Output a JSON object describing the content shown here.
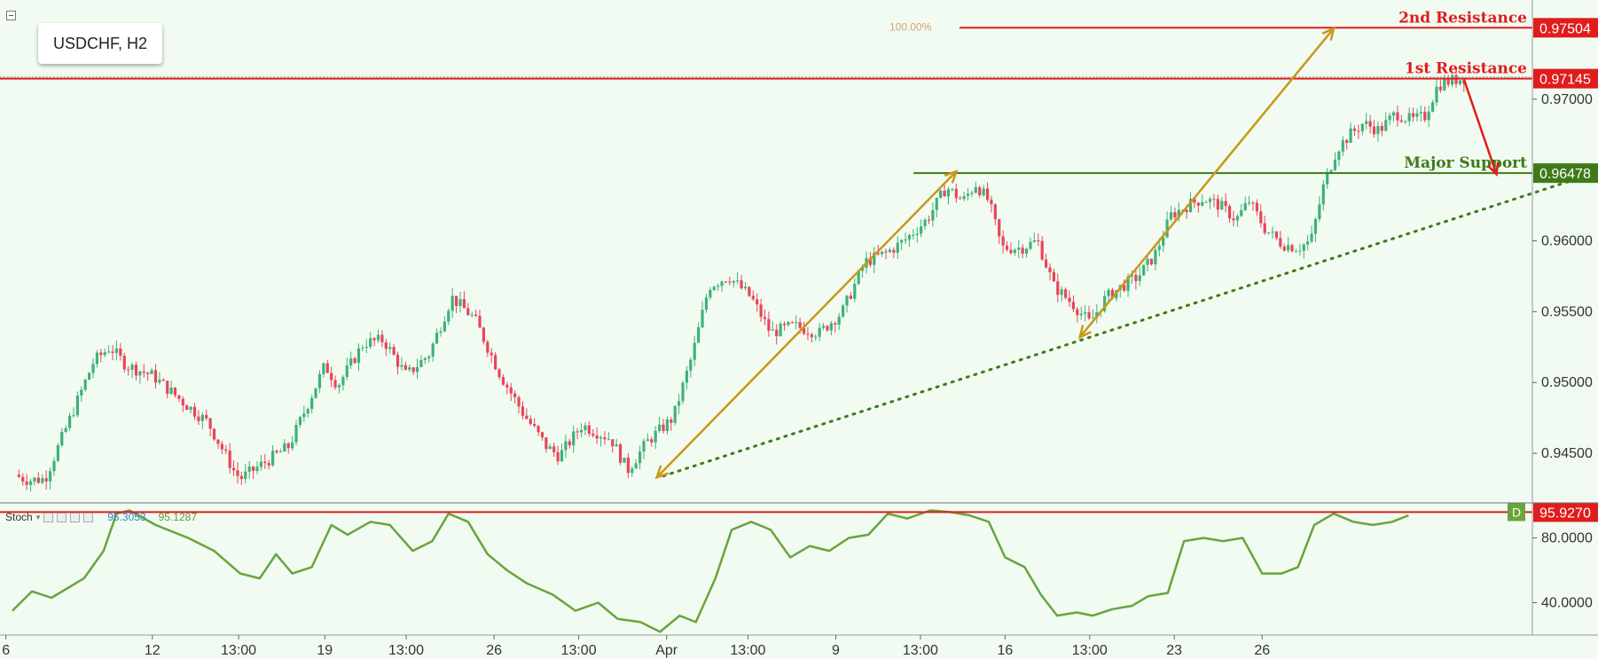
{
  "header": {
    "symbol_label": "USDCHF, H2"
  },
  "stoch_legend": {
    "name": "Stoch",
    "k_value": "95.3053",
    "d_value": "95.1287"
  },
  "fib_label": "100.00%",
  "levels": [
    {
      "name": "2nd Resistance",
      "price": 0.97504,
      "price_label": "0.97504",
      "color": "#e01c1c"
    },
    {
      "name": "1st Resistance",
      "price": 0.97145,
      "price_label": "0.97145",
      "color": "#e01c1c"
    },
    {
      "name": "Major Support",
      "price": 0.96478,
      "price_label": "0.96478",
      "color": "#3f7a18"
    }
  ],
  "stoch_level": {
    "value": 95.927,
    "value_label": "95.9270",
    "badge": "D"
  },
  "colors": {
    "bull": "#3fb17a",
    "bear": "#e8455a",
    "arrow": "#c9971a",
    "trend": "#3f7a18",
    "stoch": "#6aa43c",
    "down_arrow": "#e01c1c"
  },
  "chart_data": {
    "type": "candlestick",
    "symbol": "USDCHF",
    "timeframe": "H2",
    "y_ticks": [
      "0.97000",
      "0.96000",
      "0.95500",
      "0.95000",
      "0.94500"
    ],
    "y_tick_values": [
      0.97,
      0.96,
      0.955,
      0.95,
      0.945
    ],
    "ylim": [
      0.9415,
      0.977
    ],
    "x_ticks": [
      "6",
      "12",
      "13:00",
      "19",
      "13:00",
      "26",
      "13:00",
      "Apr",
      "13:00",
      "9",
      "13:00",
      "16",
      "13:00",
      "23",
      "26"
    ],
    "price_path": [
      {
        "t": 0.0,
        "p": 0.9435
      },
      {
        "t": 0.5,
        "p": 0.9431
      },
      {
        "t": 1.0,
        "p": 0.9432
      },
      {
        "t": 2.5,
        "p": 0.9515
      },
      {
        "t": 3.0,
        "p": 0.9525
      },
      {
        "t": 3.5,
        "p": 0.9512
      },
      {
        "t": 4.3,
        "p": 0.9505
      },
      {
        "t": 5.3,
        "p": 0.9485
      },
      {
        "t": 6.0,
        "p": 0.9472
      },
      {
        "t": 6.8,
        "p": 0.9438
      },
      {
        "t": 7.0,
        "p": 0.9432
      },
      {
        "t": 8.5,
        "p": 0.9455
      },
      {
        "t": 9.6,
        "p": 0.9512
      },
      {
        "t": 10.0,
        "p": 0.9498
      },
      {
        "t": 10.8,
        "p": 0.9528
      },
      {
        "t": 11.4,
        "p": 0.953
      },
      {
        "t": 12.1,
        "p": 0.9505
      },
      {
        "t": 12.8,
        "p": 0.952
      },
      {
        "t": 13.5,
        "p": 0.956
      },
      {
        "t": 14.2,
        "p": 0.9545
      },
      {
        "t": 15.0,
        "p": 0.9505
      },
      {
        "t": 15.7,
        "p": 0.9478
      },
      {
        "t": 16.4,
        "p": 0.9455
      },
      {
        "t": 16.8,
        "p": 0.9448
      },
      {
        "t": 17.5,
        "p": 0.947
      },
      {
        "t": 18.4,
        "p": 0.946
      },
      {
        "t": 18.9,
        "p": 0.9438
      },
      {
        "t": 19.5,
        "p": 0.9458
      },
      {
        "t": 20.3,
        "p": 0.9475
      },
      {
        "t": 20.9,
        "p": 0.952
      },
      {
        "t": 21.4,
        "p": 0.9568
      },
      {
        "t": 22.0,
        "p": 0.9575
      },
      {
        "t": 22.7,
        "p": 0.956
      },
      {
        "t": 23.3,
        "p": 0.9535
      },
      {
        "t": 24.0,
        "p": 0.954
      },
      {
        "t": 24.8,
        "p": 0.9535
      },
      {
        "t": 25.5,
        "p": 0.955
      },
      {
        "t": 26.2,
        "p": 0.9585
      },
      {
        "t": 26.9,
        "p": 0.9592
      },
      {
        "t": 27.4,
        "p": 0.96
      },
      {
        "t": 28.1,
        "p": 0.9615
      },
      {
        "t": 28.7,
        "p": 0.9638
      },
      {
        "t": 29.2,
        "p": 0.9628
      },
      {
        "t": 29.6,
        "p": 0.964
      },
      {
        "t": 30.0,
        "p": 0.9628
      },
      {
        "t": 30.4,
        "p": 0.9595
      },
      {
        "t": 31.0,
        "p": 0.9595
      },
      {
        "t": 31.5,
        "p": 0.96
      },
      {
        "t": 32.0,
        "p": 0.9568
      },
      {
        "t": 32.6,
        "p": 0.9555
      },
      {
        "t": 33.1,
        "p": 0.9542
      },
      {
        "t": 33.6,
        "p": 0.956
      },
      {
        "t": 34.1,
        "p": 0.9568
      },
      {
        "t": 34.6,
        "p": 0.9575
      },
      {
        "t": 35.1,
        "p": 0.959
      },
      {
        "t": 35.6,
        "p": 0.9618
      },
      {
        "t": 36.1,
        "p": 0.9625
      },
      {
        "t": 36.6,
        "p": 0.963
      },
      {
        "t": 37.1,
        "p": 0.9625
      },
      {
        "t": 37.6,
        "p": 0.9615
      },
      {
        "t": 38.0,
        "p": 0.9628
      },
      {
        "t": 38.5,
        "p": 0.9608
      },
      {
        "t": 39.0,
        "p": 0.9598
      },
      {
        "t": 39.5,
        "p": 0.9595
      },
      {
        "t": 39.9,
        "p": 0.96
      },
      {
        "t": 40.3,
        "p": 0.964
      },
      {
        "t": 40.7,
        "p": 0.9665
      },
      {
        "t": 41.1,
        "p": 0.9675
      },
      {
        "t": 41.5,
        "p": 0.9683
      },
      {
        "t": 42.0,
        "p": 0.9678
      },
      {
        "t": 42.5,
        "p": 0.969
      },
      {
        "t": 43.0,
        "p": 0.9685
      },
      {
        "t": 43.4,
        "p": 0.9688
      },
      {
        "t": 43.8,
        "p": 0.971
      },
      {
        "t": 44.2,
        "p": 0.9713
      },
      {
        "t": 44.6,
        "p": 0.9715
      }
    ],
    "stochastic": [
      {
        "t": 0.0,
        "v": 35
      },
      {
        "t": 0.6,
        "v": 47
      },
      {
        "t": 1.2,
        "v": 43
      },
      {
        "t": 2.2,
        "v": 55
      },
      {
        "t": 2.8,
        "v": 72
      },
      {
        "t": 3.2,
        "v": 95
      },
      {
        "t": 3.6,
        "v": 97
      },
      {
        "t": 4.4,
        "v": 88
      },
      {
        "t": 5.4,
        "v": 80
      },
      {
        "t": 6.2,
        "v": 72
      },
      {
        "t": 7.0,
        "v": 58
      },
      {
        "t": 7.6,
        "v": 55
      },
      {
        "t": 8.1,
        "v": 70
      },
      {
        "t": 8.6,
        "v": 58
      },
      {
        "t": 9.2,
        "v": 62
      },
      {
        "t": 9.8,
        "v": 88
      },
      {
        "t": 10.3,
        "v": 82
      },
      {
        "t": 11.0,
        "v": 90
      },
      {
        "t": 11.6,
        "v": 88
      },
      {
        "t": 12.3,
        "v": 72
      },
      {
        "t": 12.9,
        "v": 78
      },
      {
        "t": 13.4,
        "v": 95
      },
      {
        "t": 14.0,
        "v": 90
      },
      {
        "t": 14.6,
        "v": 70
      },
      {
        "t": 15.2,
        "v": 60
      },
      {
        "t": 15.8,
        "v": 52
      },
      {
        "t": 16.6,
        "v": 45
      },
      {
        "t": 17.3,
        "v": 35
      },
      {
        "t": 18.0,
        "v": 40
      },
      {
        "t": 18.6,
        "v": 30
      },
      {
        "t": 19.3,
        "v": 28
      },
      {
        "t": 19.9,
        "v": 22
      },
      {
        "t": 20.5,
        "v": 32
      },
      {
        "t": 21.0,
        "v": 28
      },
      {
        "t": 21.6,
        "v": 55
      },
      {
        "t": 22.1,
        "v": 85
      },
      {
        "t": 22.7,
        "v": 90
      },
      {
        "t": 23.3,
        "v": 85
      },
      {
        "t": 23.9,
        "v": 68
      },
      {
        "t": 24.5,
        "v": 75
      },
      {
        "t": 25.1,
        "v": 72
      },
      {
        "t": 25.7,
        "v": 80
      },
      {
        "t": 26.3,
        "v": 82
      },
      {
        "t": 26.9,
        "v": 95
      },
      {
        "t": 27.5,
        "v": 92
      },
      {
        "t": 28.2,
        "v": 97
      },
      {
        "t": 28.8,
        "v": 96
      },
      {
        "t": 29.4,
        "v": 94
      },
      {
        "t": 30.0,
        "v": 90
      },
      {
        "t": 30.5,
        "v": 68
      },
      {
        "t": 31.1,
        "v": 62
      },
      {
        "t": 31.6,
        "v": 45
      },
      {
        "t": 32.1,
        "v": 32
      },
      {
        "t": 32.7,
        "v": 34
      },
      {
        "t": 33.2,
        "v": 32
      },
      {
        "t": 33.8,
        "v": 36
      },
      {
        "t": 34.4,
        "v": 38
      },
      {
        "t": 34.9,
        "v": 44
      },
      {
        "t": 35.5,
        "v": 46
      },
      {
        "t": 36.0,
        "v": 78
      },
      {
        "t": 36.6,
        "v": 80
      },
      {
        "t": 37.2,
        "v": 78
      },
      {
        "t": 37.8,
        "v": 80
      },
      {
        "t": 38.4,
        "v": 58
      },
      {
        "t": 39.0,
        "v": 58
      },
      {
        "t": 39.5,
        "v": 62
      },
      {
        "t": 40.0,
        "v": 88
      },
      {
        "t": 40.6,
        "v": 95
      },
      {
        "t": 41.2,
        "v": 90
      },
      {
        "t": 41.8,
        "v": 88
      },
      {
        "t": 42.4,
        "v": 90
      },
      {
        "t": 42.9,
        "v": 94
      }
    ],
    "stoch_ticks": [
      "80.0000",
      "40.0000"
    ],
    "stoch_tick_values": [
      80,
      40
    ],
    "stoch_ylim": [
      20,
      100
    ],
    "annotations": [
      {
        "kind": "arrow",
        "from": {
          "t": 19.8,
          "p": 0.9433
        },
        "to": {
          "t": 29.0,
          "p": 0.9649
        },
        "style": "double"
      },
      {
        "kind": "arrow",
        "from": {
          "t": 32.8,
          "p": 0.9532
        },
        "to": {
          "t": 40.6,
          "p": 0.975
        },
        "style": "double"
      },
      {
        "kind": "trendline",
        "from": {
          "t": 20.0,
          "p": 0.9434
        },
        "to": {
          "t": 48.5,
          "p": 0.9647
        },
        "style": "dotted"
      },
      {
        "kind": "arrow",
        "from": {
          "t": 44.6,
          "p": 0.9714
        },
        "to": {
          "t": 45.6,
          "p": 0.9647
        },
        "style": "single"
      }
    ]
  }
}
